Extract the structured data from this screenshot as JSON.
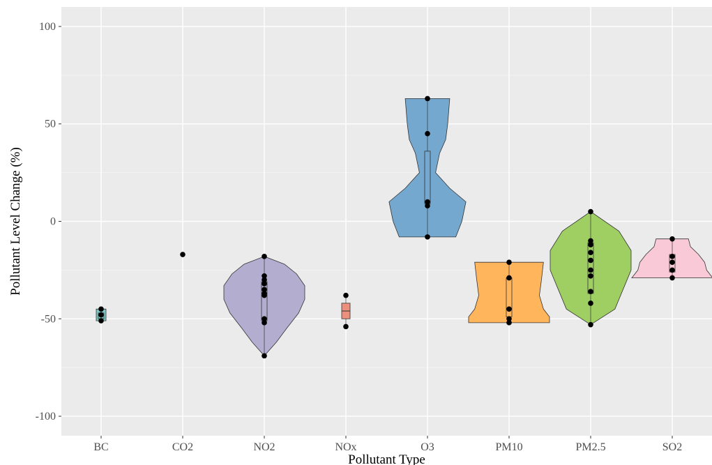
{
  "chart_data": {
    "type": "violin",
    "title": "",
    "xlabel": "Pollutant Type",
    "ylabel": "Pollutant Level Change (%)",
    "ylim": [
      -110,
      110
    ],
    "yticks": [
      -100,
      -50,
      0,
      50,
      100
    ],
    "ytick_labels": [
      "-100",
      "-50",
      "0",
      "50",
      "100"
    ],
    "grid": true,
    "legend": "none",
    "categories": [
      "BC",
      "CO2",
      "NO2",
      "NOx",
      "O3",
      "PM10",
      "PM2.5",
      "SO2"
    ],
    "series": [
      {
        "category": "BC",
        "color": "#66C2A5",
        "points": [
          -45,
          -48,
          -51
        ],
        "box": {
          "q1": -50,
          "median": -48,
          "q3": -47
        },
        "violin": [
          [
            -51,
            0.12
          ],
          [
            -48,
            0.12
          ],
          [
            -45,
            0.12
          ]
        ]
      },
      {
        "category": "CO2",
        "color": "#FC8D62",
        "points": [
          -17
        ],
        "box": null,
        "violin": []
      },
      {
        "category": "NO2",
        "color": "#8DA0CB",
        "points": [
          -18,
          -28,
          -30,
          -32,
          -35,
          -37,
          -38,
          -50,
          -52,
          -69
        ],
        "box": {
          "q1": -51,
          "median": -37,
          "q3": -31
        },
        "violin": [
          [
            -69,
            0.0
          ],
          [
            -62,
            0.3
          ],
          [
            -55,
            0.55
          ],
          [
            -47,
            0.85
          ],
          [
            -40,
            1.0
          ],
          [
            -33,
            1.0
          ],
          [
            -27,
            0.8
          ],
          [
            -22,
            0.5
          ],
          [
            -18,
            0.0
          ]
        ]
      },
      {
        "category": "NOx",
        "color": "#E78AC3",
        "points": [
          -38,
          -54
        ],
        "box": {
          "q1": -50,
          "median": -46,
          "q3": -42
        },
        "violin": []
      },
      {
        "category": "O3",
        "color": "#A6D854",
        "points": [
          -8,
          8,
          10,
          45,
          63
        ],
        "box": {
          "q1": 9,
          "median": 10,
          "q3": 36
        },
        "violin": [
          [
            -8,
            0.7
          ],
          [
            0,
            0.85
          ],
          [
            10,
            0.95
          ],
          [
            17,
            0.55
          ],
          [
            25,
            0.2
          ],
          [
            35,
            0.3
          ],
          [
            42,
            0.45
          ],
          [
            50,
            0.5
          ],
          [
            63,
            0.55
          ]
        ]
      },
      {
        "category": "PM10",
        "color": "#FFD92F",
        "points": [
          -21,
          -29,
          -45,
          -50,
          -52
        ],
        "box": {
          "q1": -49,
          "median": -45,
          "q3": -29
        },
        "violin": [
          [
            -52,
            1.0
          ],
          [
            -49,
            1.0
          ],
          [
            -45,
            0.85
          ],
          [
            -38,
            0.75
          ],
          [
            -30,
            0.8
          ],
          [
            -21,
            0.85
          ]
        ]
      },
      {
        "category": "PM2.5",
        "color": "#E5C494",
        "points": [
          5,
          -10,
          -12,
          -16,
          -20,
          -25,
          -28,
          -36,
          -42,
          -53
        ],
        "box": {
          "q1": -37,
          "median": -20,
          "q3": -11
        },
        "violin": [
          [
            -53,
            0.0
          ],
          [
            -45,
            0.6
          ],
          [
            -35,
            0.8
          ],
          [
            -25,
            1.0
          ],
          [
            -15,
            1.0
          ],
          [
            -5,
            0.7
          ],
          [
            5,
            0.0
          ]
        ]
      },
      {
        "category": "SO2",
        "color": "#B3B3B3",
        "points": [
          -9,
          -18,
          -21,
          -25,
          -29
        ],
        "box": {
          "q1": -26,
          "median": -21,
          "q3": -17
        },
        "violin": [
          [
            -29,
            1.0
          ],
          [
            -25,
            0.85
          ],
          [
            -21,
            0.8
          ],
          [
            -17,
            0.65
          ],
          [
            -13,
            0.45
          ],
          [
            -9,
            0.4
          ]
        ]
      }
    ]
  }
}
